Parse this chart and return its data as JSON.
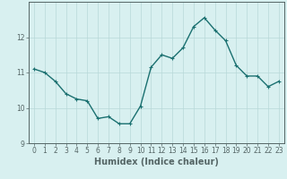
{
  "title": "",
  "x_values": [
    0,
    1,
    2,
    3,
    4,
    5,
    6,
    7,
    8,
    9,
    10,
    11,
    12,
    13,
    14,
    15,
    16,
    17,
    18,
    19,
    20,
    21,
    22,
    23
  ],
  "y_values": [
    11.1,
    11.0,
    10.75,
    10.4,
    10.25,
    10.2,
    9.7,
    9.75,
    9.55,
    9.55,
    10.05,
    11.15,
    11.5,
    11.4,
    11.7,
    12.3,
    12.55,
    12.2,
    11.9,
    11.2,
    10.9,
    10.9,
    10.6,
    10.75
  ],
  "line_color": "#1a7070",
  "marker": "+",
  "marker_size": 3,
  "bg_color": "#d8f0f0",
  "grid_color": "#b8d8d8",
  "axis_color": "#556666",
  "xlabel": "Humidex (Indice chaleur)",
  "xlim": [
    -0.5,
    23.5
  ],
  "ylim": [
    9.0,
    13.0
  ],
  "yticks": [
    9,
    10,
    11,
    12
  ],
  "xticks": [
    0,
    1,
    2,
    3,
    4,
    5,
    6,
    7,
    8,
    9,
    10,
    11,
    12,
    13,
    14,
    15,
    16,
    17,
    18,
    19,
    20,
    21,
    22,
    23
  ],
  "tick_fontsize": 5.5,
  "xlabel_fontsize": 7.0,
  "line_width": 1.0
}
